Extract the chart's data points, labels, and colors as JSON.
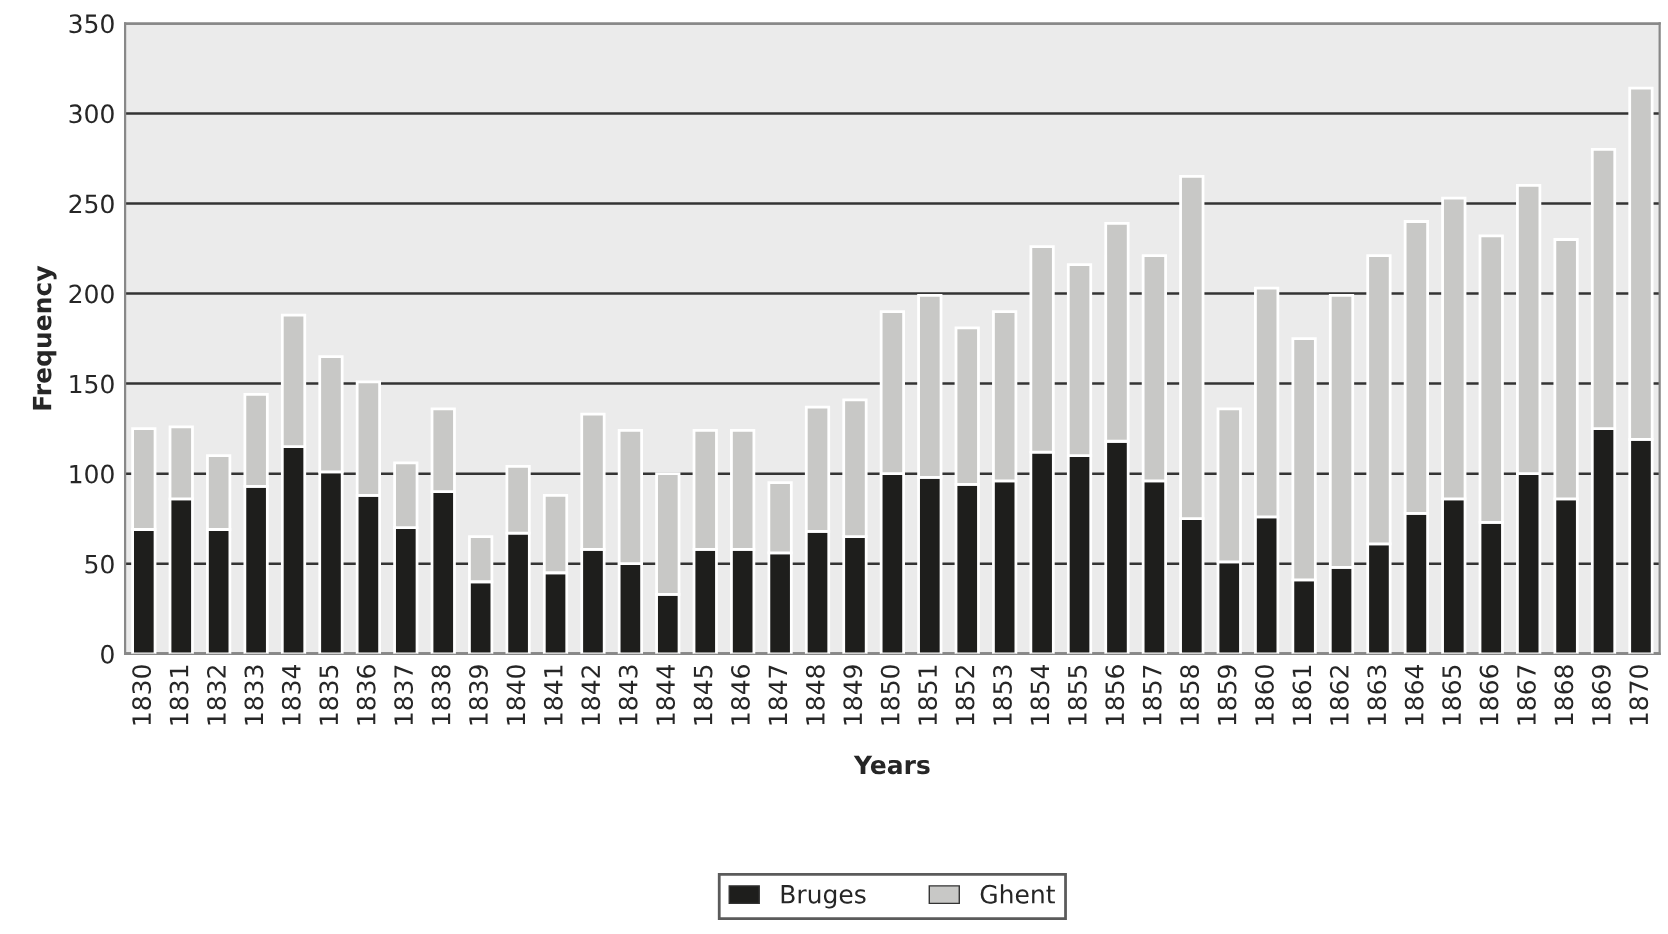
{
  "chart_data": {
    "type": "bar",
    "stacked": true,
    "xlabel": "Years",
    "ylabel": "Frequency",
    "categories": [
      "1830",
      "1831",
      "1832",
      "1833",
      "1834",
      "1835",
      "1836",
      "1837",
      "1838",
      "1839",
      "1840",
      "1841",
      "1842",
      "1843",
      "1844",
      "1845",
      "1846",
      "1847",
      "1848",
      "1849",
      "1850",
      "1851",
      "1852",
      "1853",
      "1854",
      "1855",
      "1856",
      "1857",
      "1858",
      "1859",
      "1860",
      "1861",
      "1862",
      "1863",
      "1864",
      "1865",
      "1866",
      "1867",
      "1868",
      "1869",
      "1870"
    ],
    "series": [
      {
        "name": "Bruges",
        "color": "#1e1e1c",
        "values": [
          69,
          86,
          69,
          93,
          115,
          101,
          88,
          70,
          90,
          40,
          67,
          45,
          58,
          50,
          33,
          58,
          58,
          56,
          68,
          65,
          100,
          98,
          94,
          96,
          112,
          110,
          118,
          96,
          75,
          51,
          76,
          41,
          48,
          61,
          78,
          86,
          73,
          100,
          86,
          125,
          119
        ]
      },
      {
        "name": "Ghent",
        "color": "#c8c8c6",
        "values": [
          56,
          40,
          41,
          51,
          73,
          64,
          63,
          36,
          46,
          25,
          37,
          43,
          75,
          74,
          67,
          66,
          66,
          39,
          69,
          76,
          90,
          101,
          87,
          94,
          114,
          106,
          121,
          125,
          190,
          85,
          127,
          134,
          151,
          160,
          162,
          167,
          159,
          160,
          144,
          155,
          195
        ]
      }
    ],
    "ylim": [
      0,
      350
    ],
    "yticks": [
      0,
      50,
      100,
      150,
      200,
      250,
      300,
      350
    ],
    "grid": "y",
    "legend": "bottom"
  }
}
